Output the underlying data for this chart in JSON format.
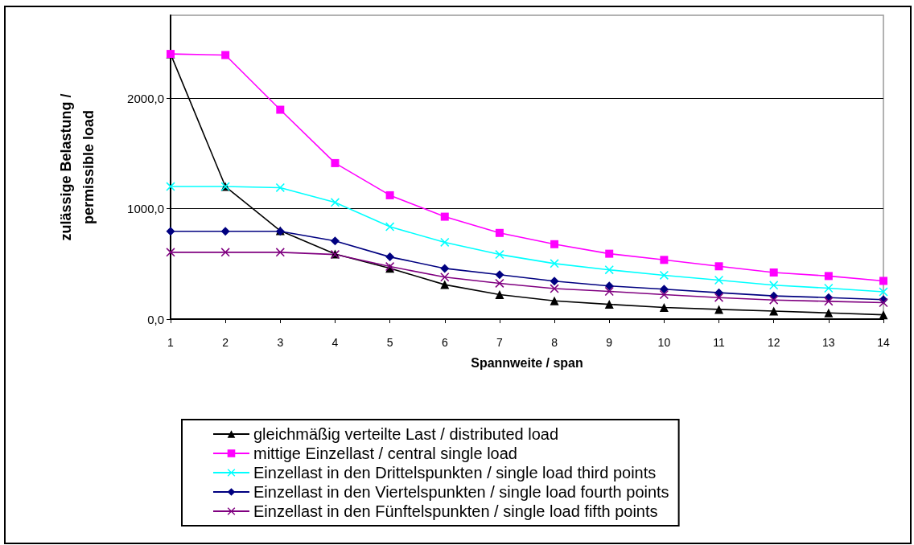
{
  "chart_data": {
    "type": "line",
    "xlabel": "Spannweite / span",
    "ylabel": "zulässige Belastung / permissible load",
    "x": [
      1,
      2,
      3,
      4,
      5,
      6,
      7,
      8,
      9,
      10,
      11,
      12,
      13,
      14
    ],
    "xlim": [
      1,
      14
    ],
    "xticks": [
      1,
      2,
      3,
      4,
      5,
      6,
      7,
      8,
      9,
      10,
      11,
      12,
      13,
      14
    ],
    "ylim": [
      0,
      2750
    ],
    "yticks": [
      {
        "value": 0,
        "label": "0,0"
      },
      {
        "value": 1000,
        "label": "1000,0"
      },
      {
        "value": 2000,
        "label": "2000,0"
      }
    ],
    "grid": "y",
    "legend": "bottom",
    "line_style": "solid",
    "series": [
      {
        "name": "gleichmäßig verteilte Last / distributed load",
        "color": "#000000",
        "marker": "triangle",
        "values": [
          2400,
          1200,
          800,
          590,
          460,
          312,
          222,
          166,
          134,
          105,
          88,
          73,
          56,
          39
        ]
      },
      {
        "name": "mittige Einzellast / central single load",
        "color": "#ff00ff",
        "marker": "square",
        "values": [
          2400,
          2390,
          1895,
          1412,
          1121,
          927,
          780,
          678,
          592,
          536,
          478,
          422,
          390,
          346
        ]
      },
      {
        "name": "Einzellast in den Drittelspunkten / single load third points",
        "color": "#00ffff",
        "marker": "cross",
        "values": [
          1200,
          1200,
          1190,
          1056,
          836,
          695,
          585,
          503,
          446,
          397,
          353,
          307,
          280,
          247
        ]
      },
      {
        "name": "Einzellast in den Viertelspunkten / single load fourth points",
        "color": "#000080",
        "marker": "diamond",
        "values": [
          795,
          795,
          795,
          707,
          563,
          459,
          402,
          344,
          300,
          271,
          239,
          210,
          195,
          176
        ]
      },
      {
        "name": "Einzellast in den Fünftelspunkten / single load fifth points",
        "color": "#800080",
        "marker": "cross",
        "values": [
          605,
          605,
          605,
          585,
          476,
          380,
          324,
          276,
          251,
          222,
          195,
          173,
          161,
          149
        ]
      }
    ]
  }
}
